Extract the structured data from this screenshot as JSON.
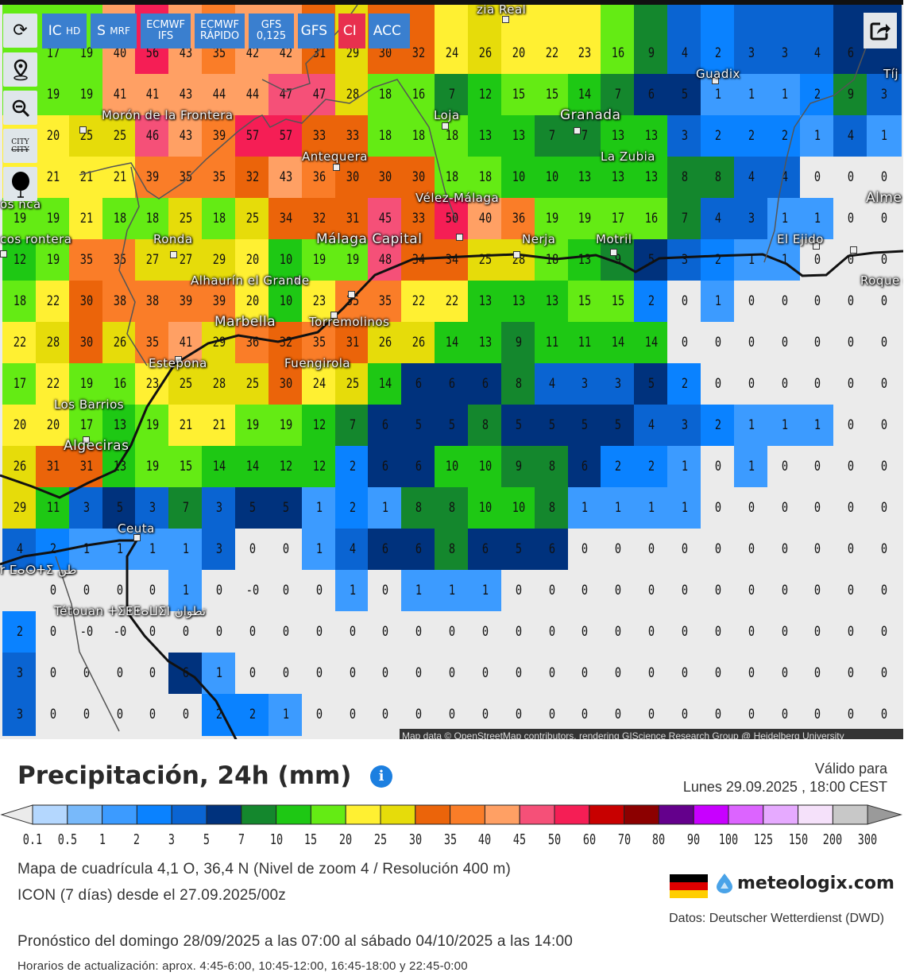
{
  "toolbar": {
    "left_buttons": [
      {
        "icon": "refresh-icon",
        "glyph": "⟳"
      },
      {
        "icon": "location-pin-icon",
        "glyph": "⌖"
      },
      {
        "icon": "zoom-out-icon",
        "glyph": "🔍"
      },
      {
        "icon": "city-toggle-icon",
        "label_top": "CITY",
        "label_bottom": "CITY"
      },
      {
        "icon": "balloon-icon",
        "glyph": "●"
      }
    ],
    "model_buttons": [
      {
        "main": "IC",
        "sub": "HD"
      },
      {
        "main": "S",
        "sub": "MRF"
      },
      {
        "main": "ECMWF",
        "sub": "IFS"
      },
      {
        "main": "ECMWF",
        "sub": "RÁPIDO"
      },
      {
        "main": "GFS",
        "sub": "0,125"
      },
      {
        "main": "GFS",
        "sub": ""
      },
      {
        "main": "CI",
        "sub": ""
      },
      {
        "main": "ACC",
        "sub": ""
      }
    ],
    "button_color": "#3a7fcf",
    "active_color": "#e8304e",
    "share_icon": "share-icon"
  },
  "map": {
    "grid": [
      [
        null,
        "17",
        "19",
        "40",
        "56",
        "43",
        "35",
        "42",
        "42",
        "31",
        "29",
        "30",
        "32",
        "24",
        "26",
        "20",
        "22",
        "23",
        "16",
        "9",
        "4",
        "2",
        "3",
        "3",
        "4",
        "6",
        null
      ],
      [
        null,
        "19",
        "19",
        "41",
        "41",
        "43",
        "44",
        "44",
        "47",
        "47",
        "28",
        "18",
        "16",
        "7",
        "12",
        "15",
        "15",
        "14",
        "7",
        "6",
        "5",
        "1",
        "1",
        "1",
        "2",
        "9",
        "3"
      ],
      [
        null,
        "20",
        "25",
        "25",
        "46",
        "43",
        "39",
        "57",
        "57",
        "33",
        "33",
        "18",
        "18",
        "18",
        "13",
        "13",
        "7",
        "7",
        "13",
        "13",
        "3",
        "2",
        "2",
        "2",
        "1",
        "4",
        "1"
      ],
      [
        null,
        "21",
        "21",
        "21",
        "39",
        "35",
        "35",
        "32",
        "43",
        "36",
        "30",
        "30",
        "30",
        "18",
        "18",
        "10",
        "10",
        "13",
        "13",
        "13",
        "8",
        "8",
        "4",
        "4",
        "0",
        "0",
        "0"
      ],
      [
        "19",
        "19",
        "21",
        "18",
        "18",
        "25",
        "18",
        "25",
        "34",
        "32",
        "31",
        "45",
        "33",
        "50",
        "40",
        "36",
        "19",
        "19",
        "17",
        "16",
        "7",
        "4",
        "3",
        "1",
        "1",
        "0",
        "0"
      ],
      [
        "12",
        "19",
        "35",
        "35",
        "27",
        "27",
        "29",
        "20",
        "10",
        "19",
        "19",
        "48",
        "34",
        "34",
        "25",
        "28",
        "18",
        "13",
        "9",
        "5",
        "3",
        "2",
        "1",
        "1",
        "0",
        "0",
        "0"
      ],
      [
        "18",
        "22",
        "30",
        "38",
        "38",
        "39",
        "39",
        "20",
        "10",
        "23",
        "35",
        "35",
        "22",
        "22",
        "13",
        "13",
        "13",
        "15",
        "15",
        "2",
        "0",
        "1",
        "0",
        "0",
        "0",
        "0",
        "0"
      ],
      [
        "22",
        "28",
        "30",
        "26",
        "35",
        "41",
        "29",
        "36",
        "32",
        "35",
        "31",
        "26",
        "26",
        "14",
        "13",
        "9",
        "11",
        "11",
        "14",
        "14",
        "0",
        "0",
        "0",
        "0",
        "0",
        "0",
        "0"
      ],
      [
        "17",
        "22",
        "19",
        "16",
        "23",
        "25",
        "28",
        "25",
        "30",
        "24",
        "25",
        "14",
        "6",
        "6",
        "6",
        "8",
        "4",
        "3",
        "3",
        "5",
        "2",
        "0",
        "0",
        "0",
        "0",
        "0",
        "0"
      ],
      [
        "20",
        "20",
        "17",
        "13",
        "19",
        "21",
        "21",
        "19",
        "19",
        "12",
        "7",
        "6",
        "5",
        "5",
        "8",
        "5",
        "5",
        "5",
        "5",
        "4",
        "3",
        "2",
        "1",
        "1",
        "1",
        "0",
        "0"
      ],
      [
        "26",
        "31",
        "31",
        "13",
        "19",
        "15",
        "14",
        "14",
        "12",
        "12",
        "2",
        "6",
        "6",
        "10",
        "10",
        "9",
        "8",
        "6",
        "2",
        "2",
        "1",
        "0",
        "1",
        "0",
        "0",
        "0",
        "0"
      ],
      [
        "29",
        "11",
        "3",
        "5",
        "3",
        "7",
        "3",
        "5",
        "5",
        "1",
        "2",
        "1",
        "8",
        "8",
        "10",
        "10",
        "8",
        "1",
        "1",
        "1",
        "1",
        "0",
        "0",
        "0",
        "0",
        "0",
        "0"
      ],
      [
        "4",
        "2",
        "1",
        "1",
        "1",
        "1",
        "3",
        "0",
        "0",
        "1",
        "4",
        "6",
        "6",
        "8",
        "6",
        "5",
        "6",
        "0",
        "0",
        "0",
        "0",
        "0",
        "0",
        "0",
        "0",
        "0",
        "0"
      ],
      [
        null,
        "0",
        "0",
        "0",
        "0",
        "1",
        "0",
        "-0",
        "0",
        "0",
        "1",
        "0",
        "1",
        "1",
        "1",
        "0",
        "0",
        "0",
        "0",
        "0",
        "0",
        "0",
        "0",
        "0",
        "0",
        "0",
        "0"
      ],
      [
        "2",
        "0",
        "-0",
        "-0",
        "0",
        "0",
        "0",
        "0",
        "0",
        "0",
        "0",
        "0",
        "0",
        "0",
        "0",
        "0",
        "0",
        "0",
        "0",
        "0",
        "0",
        "0",
        "0",
        "0",
        "0",
        "0",
        "0"
      ],
      [
        "3",
        "0",
        "0",
        "0",
        "0",
        "6",
        "1",
        "0",
        "0",
        "0",
        "0",
        "0",
        "0",
        "0",
        "0",
        "0",
        "0",
        "0",
        "0",
        "0",
        "0",
        "0",
        "0",
        "0",
        "0",
        "0",
        "0"
      ],
      [
        "3",
        "0",
        "0",
        "0",
        "0",
        "0",
        "2",
        "2",
        "1",
        "0",
        "0",
        "0",
        "0",
        "0",
        "0",
        "0",
        "0",
        "0",
        "0",
        "0",
        "0",
        "0",
        "0",
        "0",
        "0",
        "0",
        "0"
      ]
    ],
    "cities": {
      "alcala": "zia Real",
      "moron": "Morón\nde la Frontera",
      "antequera": "Antequera",
      "loja": "Loja",
      "granada": "Granada",
      "la_zubia": "La Zubia",
      "guadix": "Guadix",
      "tijola": "Tíj",
      "velez": "Vélez-Málaga",
      "nerja": "Nerja",
      "motril": "Motril",
      "el_ejido": "El Ejido",
      "almeria": "Alme",
      "roquetas": "Roque\nde Ma",
      "ronda": "Ronda",
      "alhaurin": "Alhaurín\nel Grande",
      "malaga": "Málaga Capital",
      "torremolinos": "Torremolinos",
      "fuengirola": "Fuengirola",
      "marbella": "Marbella",
      "estepona": "Estepona",
      "los_barrios": "Los Barrios",
      "algeciras": "Algeciras",
      "ceuta": "Ceuta",
      "tetouan": "Tétouan ⵜⵉⵟⵟⴰⵡⵉⵏ\nتطوان",
      "left1": "os\nnca",
      "left2": "cos\nrontera",
      "left3": "r ⵎⴰⵔⵜⵉ\nطن"
    },
    "attribution": "Map data © OpenStreetMap contributors, rendering GIScience Research Group @ Heidelberg University"
  },
  "header": {
    "title": "Precipitación, 24h (mm)",
    "info_icon": "info-icon",
    "valid_label": "Válido para",
    "valid_datetime": "Lunes 29.09.2025 ,  18:00  CEST"
  },
  "legend": {
    "below_color": "#ebebeb",
    "above_color": "#9a9a9a",
    "ticks": [
      "0.1",
      "0.5",
      "1",
      "2",
      "3",
      "5",
      "7",
      "10",
      "15",
      "20",
      "25",
      "30",
      "35",
      "40",
      "45",
      "50",
      "60",
      "70",
      "80",
      "90",
      "100",
      "125",
      "150",
      "200",
      "300"
    ],
    "colors": [
      "#b4d7fe",
      "#78b9fa",
      "#3c9bff",
      "#0a82ff",
      "#0a64d2",
      "#00327d",
      "#14872d",
      "#1ec814",
      "#64eb14",
      "#fff032",
      "#e6dc0a",
      "#eb640a",
      "#fa7d28",
      "#ffa064",
      "#f55078",
      "#f51e55",
      "#c80000",
      "#8c0000",
      "#64008c",
      "#c800ff",
      "#dc64ff",
      "#e6aaff",
      "#f5e1fa",
      "#c8c8c8"
    ]
  },
  "info": {
    "grid_line": "Mapa de cuadrícula 4,1 O, 36,4 N (Nivel de zoom 4 / Resolución 400 m)",
    "model_line": "ICON (7 días) desde el 27.09.2025/00z",
    "source": "Datos: Deutscher Wetterdienst (DWD)",
    "forecast_range": "Pronóstico del domingo 28/09/2025 a las 07:00 al sábado 04/10/2025 a las 14:00",
    "update_times": "Horarios de actualización: aprox. 4:45-6:00, 10:45-12:00, 16:45-18:00 y 22:45-0:00",
    "logo_text": "meteologix.com",
    "flag_colors": [
      "#000000",
      "#dd0000",
      "#ffce00"
    ]
  }
}
